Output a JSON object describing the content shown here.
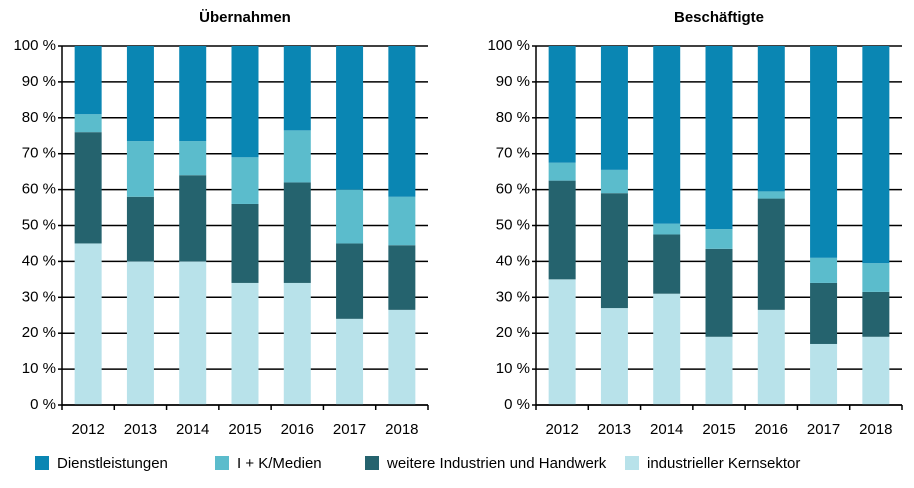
{
  "chart_data": [
    {
      "type": "stacked_bar",
      "title": "Übernahmen",
      "categories": [
        "2012",
        "2013",
        "2014",
        "2015",
        "2016",
        "2017",
        "2018"
      ],
      "series": [
        {
          "name": "Dienstleistungen",
          "color": "#0a86b3",
          "values": [
            19,
            26.5,
            26.5,
            31,
            23.5,
            40,
            42
          ]
        },
        {
          "name": "I + K/Medien",
          "color": "#5bbccc",
          "values": [
            5,
            15.5,
            9.5,
            13,
            14.5,
            15,
            13.5
          ]
        },
        {
          "name": "weitere Industrien und Handwerk",
          "color": "#25636e",
          "values": [
            31,
            18,
            24,
            22,
            28,
            21,
            18
          ]
        },
        {
          "name": "industrieller Kernsektor",
          "color": "#b8e2ea",
          "values": [
            45,
            40,
            40,
            34,
            34,
            24,
            26.5
          ]
        }
      ],
      "ylim": [
        0,
        100
      ],
      "yticks": [
        {
          "value": 0,
          "label": "0 %"
        },
        {
          "value": 10,
          "label": "10 %"
        },
        {
          "value": 20,
          "label": "20 %"
        },
        {
          "value": 30,
          "label": "30 %"
        },
        {
          "value": 40,
          "label": "40 %"
        },
        {
          "value": 50,
          "label": "50 %"
        },
        {
          "value": 60,
          "label": "60 %"
        },
        {
          "value": 70,
          "label": "70 %"
        },
        {
          "value": 80,
          "label": "80 %"
        },
        {
          "value": 90,
          "label": "90 %"
        },
        {
          "value": 100,
          "label": "100 %"
        }
      ],
      "grid": true
    },
    {
      "type": "stacked_bar",
      "title": "Beschäftigte",
      "categories": [
        "2012",
        "2013",
        "2014",
        "2015",
        "2016",
        "2017",
        "2018"
      ],
      "series": [
        {
          "color": "#0a86b3",
          "values": [
            32.5,
            34.5,
            49.5,
            51,
            40.5,
            59,
            60.5
          ]
        },
        {
          "color": "#5bbccc",
          "values": [
            5,
            6.5,
            3,
            5.5,
            2,
            7,
            8
          ]
        },
        {
          "color": "#25636e",
          "values": [
            27.5,
            32,
            16.5,
            24.5,
            31,
            17,
            12.5
          ]
        },
        {
          "color": "#b8e2ea",
          "values": [
            35,
            27,
            31,
            19,
            26.5,
            17,
            19
          ]
        }
      ],
      "ylim": [
        0,
        100
      ],
      "yticks": [
        {
          "value": 0,
          "label": "0 %"
        },
        {
          "value": 10,
          "label": "10 %"
        },
        {
          "value": 20,
          "label": "20 %"
        },
        {
          "value": 30,
          "label": "30 %"
        },
        {
          "value": 40,
          "label": "40 %"
        },
        {
          "value": 50,
          "label": "50 %"
        },
        {
          "value": 60,
          "label": "60 %"
        },
        {
          "value": 70,
          "label": "70 %"
        },
        {
          "value": 80,
          "label": "80 %"
        },
        {
          "value": 90,
          "label": "90 %"
        },
        {
          "value": 100,
          "label": "100 %"
        }
      ],
      "grid": true
    }
  ]
}
